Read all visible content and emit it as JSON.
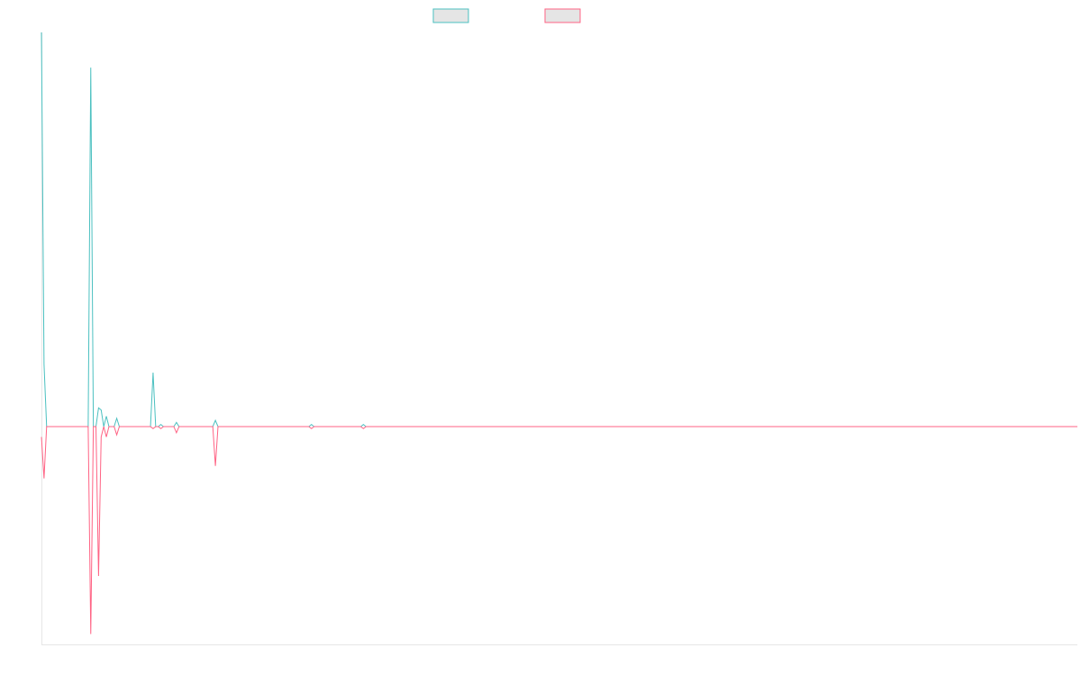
{
  "chart_data": {
    "type": "line",
    "title": "",
    "xlabel": "",
    "ylabel": "",
    "legend": {
      "placement": "top-center"
    },
    "grid": false,
    "x": [
      0,
      1,
      2,
      3,
      4,
      5,
      6,
      7,
      8,
      9,
      10,
      11,
      12,
      13,
      14,
      15,
      16,
      17,
      18,
      19,
      20,
      21,
      22,
      23,
      24,
      25,
      26,
      27,
      28,
      29,
      30,
      31,
      32,
      33,
      34,
      35,
      36,
      37,
      38,
      39,
      40,
      41,
      42,
      43,
      44,
      45,
      46,
      47,
      48,
      49,
      50,
      51,
      52,
      53,
      54,
      55,
      56,
      57,
      58,
      59,
      60,
      61,
      62,
      63,
      64,
      65,
      66,
      67,
      68,
      69,
      70,
      71,
      72,
      73,
      74,
      75,
      76,
      77,
      78,
      79,
      80,
      81,
      82,
      83,
      84,
      85,
      86,
      87,
      88,
      89,
      90,
      91,
      92,
      93,
      94,
      95,
      96,
      97,
      98,
      99,
      100,
      101,
      102,
      103,
      104,
      105,
      106,
      107,
      108,
      109,
      110,
      111,
      112,
      113,
      114,
      115,
      116,
      117,
      118,
      119,
      120,
      121,
      122,
      123,
      124,
      125,
      126,
      127,
      128,
      129,
      130,
      131,
      132,
      133,
      134,
      135,
      136,
      137,
      138,
      139,
      140,
      141,
      142,
      143,
      144,
      145,
      146,
      147,
      148,
      149,
      150,
      151,
      152,
      153,
      154,
      155,
      156,
      157,
      158,
      159,
      160,
      161,
      162,
      163,
      164,
      165,
      166,
      167,
      168,
      169,
      170,
      171,
      172,
      173,
      174,
      175,
      176,
      177,
      178,
      179,
      180,
      181,
      182,
      183,
      184,
      185,
      186,
      187,
      188,
      189,
      190,
      191,
      192,
      193,
      194,
      195,
      196,
      197,
      198,
      199,
      200,
      201,
      202,
      203,
      204,
      205,
      206,
      207,
      208,
      209,
      210,
      211,
      212,
      213,
      214,
      215,
      216,
      217,
      218,
      219,
      220,
      221,
      222,
      223,
      224,
      225,
      226,
      227,
      228,
      229,
      230,
      231,
      232,
      233,
      234,
      235,
      236,
      237,
      238,
      239,
      240,
      241,
      242,
      243,
      244,
      245,
      246,
      247,
      248,
      249,
      250,
      251,
      252,
      253,
      254,
      255,
      256,
      257,
      258,
      259,
      260,
      261,
      262,
      263,
      264,
      265,
      266,
      267,
      268,
      269,
      270,
      271,
      272,
      273,
      274,
      275,
      276,
      277,
      278,
      279,
      280,
      281,
      282,
      283,
      284,
      285,
      286,
      287,
      288,
      289,
      290,
      291,
      292,
      293,
      294,
      295,
      296,
      297,
      298,
      299,
      300,
      301,
      302,
      303,
      304,
      305,
      306,
      307,
      308,
      309,
      310,
      311,
      312,
      313,
      314,
      315,
      316,
      317,
      318,
      319,
      320,
      321,
      322,
      323,
      324,
      325,
      326,
      327,
      328,
      329,
      330,
      331,
      332,
      333,
      334,
      335,
      336,
      337,
      338,
      339,
      340,
      341,
      342,
      343,
      344,
      345,
      346,
      347,
      348,
      349,
      350,
      351,
      352,
      353,
      354,
      355,
      356,
      357,
      358,
      359,
      360,
      361,
      362,
      363,
      364,
      365,
      366,
      367,
      368,
      369,
      370,
      371,
      372,
      373,
      374,
      375,
      376,
      377,
      378,
      379,
      380,
      381,
      382,
      383,
      384,
      385,
      386,
      387,
      388,
      389,
      390,
      391,
      392,
      393,
      394,
      395,
      396,
      397,
      398,
      399
    ],
    "ylim": [
      -105,
      190
    ],
    "series": [
      {
        "color": "#4bc0c0",
        "points": [
          [
            0,
            190
          ],
          [
            1,
            30
          ],
          [
            2,
            0
          ],
          [
            18,
            0
          ],
          [
            19,
            173
          ],
          [
            20,
            0
          ],
          [
            21,
            0
          ],
          [
            22,
            9
          ],
          [
            23,
            8
          ],
          [
            24,
            0
          ],
          [
            25,
            5
          ],
          [
            26,
            0
          ],
          [
            27,
            0
          ],
          [
            28,
            0
          ],
          [
            29,
            4
          ],
          [
            30,
            0
          ],
          [
            31,
            0
          ],
          [
            42,
            0
          ],
          [
            43,
            26
          ],
          [
            44,
            0
          ],
          [
            45,
            0
          ],
          [
            46,
            1
          ],
          [
            47,
            0
          ],
          [
            51,
            0
          ],
          [
            52,
            2
          ],
          [
            53,
            0
          ],
          [
            66,
            0
          ],
          [
            67,
            3
          ],
          [
            68,
            0
          ],
          [
            103,
            0
          ],
          [
            104,
            1
          ],
          [
            105,
            0
          ],
          [
            123,
            0
          ],
          [
            124,
            1
          ],
          [
            125,
            0
          ],
          [
            399,
            0
          ]
        ]
      },
      {
        "color": "#ff6384",
        "points": [
          [
            0,
            -5
          ],
          [
            1,
            -25
          ],
          [
            2,
            0
          ],
          [
            18,
            0
          ],
          [
            19,
            -100
          ],
          [
            20,
            0
          ],
          [
            21,
            0
          ],
          [
            22,
            -72
          ],
          [
            23,
            -5
          ],
          [
            24,
            0
          ],
          [
            25,
            -5
          ],
          [
            26,
            0
          ],
          [
            27,
            0
          ],
          [
            28,
            0
          ],
          [
            29,
            -4
          ],
          [
            30,
            0
          ],
          [
            31,
            0
          ],
          [
            42,
            0
          ],
          [
            43,
            -1
          ],
          [
            44,
            0
          ],
          [
            45,
            0
          ],
          [
            46,
            -1
          ],
          [
            47,
            0
          ],
          [
            51,
            0
          ],
          [
            52,
            -3
          ],
          [
            53,
            0
          ],
          [
            66,
            0
          ],
          [
            67,
            -19
          ],
          [
            68,
            0
          ],
          [
            103,
            0
          ],
          [
            104,
            -1
          ],
          [
            105,
            0
          ],
          [
            123,
            0
          ],
          [
            124,
            -1
          ],
          [
            125,
            0
          ],
          [
            399,
            0
          ]
        ]
      }
    ]
  }
}
